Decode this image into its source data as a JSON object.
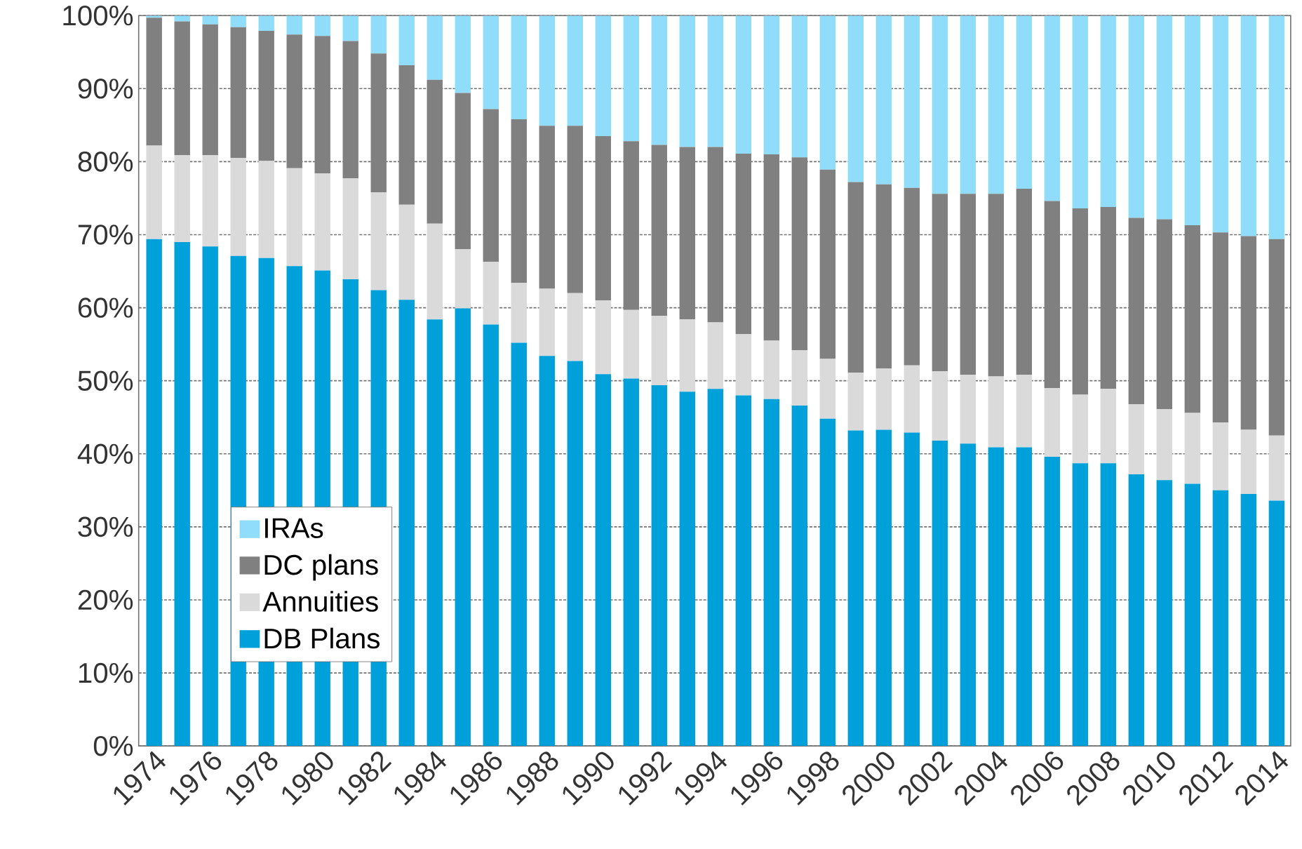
{
  "chart_data": {
    "type": "bar",
    "stacked": true,
    "categories": [
      "1974",
      null,
      "1976",
      null,
      "1978",
      null,
      "1980",
      null,
      "1982",
      null,
      "1984",
      null,
      "1986",
      null,
      "1988",
      null,
      "1990",
      null,
      "1992",
      null,
      "1994",
      null,
      "1996",
      null,
      "1998",
      null,
      "2000",
      null,
      "2002",
      null,
      "2004",
      null,
      "2006",
      null,
      "2008",
      null,
      "2010",
      null,
      "2012",
      null,
      "2014"
    ],
    "series": [
      {
        "name": "DB Plans",
        "color": "#00a0db",
        "values": [
          69.4,
          69.0,
          68.4,
          67.1,
          66.8,
          65.7,
          65.1,
          63.9,
          62.4,
          61.1,
          58.4,
          59.9,
          57.7,
          55.2,
          53.4,
          52.7,
          50.9,
          50.3,
          49.4,
          48.5,
          48.9,
          48.0,
          47.5,
          46.6,
          44.8,
          43.2,
          43.3,
          42.9,
          41.8,
          41.4,
          40.9,
          40.9,
          39.6,
          38.7,
          38.7,
          37.2,
          36.4,
          35.9,
          35.0,
          34.5,
          33.6
        ]
      },
      {
        "name": "Annuities",
        "color": "#dadada",
        "values": [
          12.8,
          11.9,
          12.5,
          13.4,
          13.3,
          13.4,
          13.3,
          13.8,
          13.4,
          13.0,
          13.1,
          8.1,
          8.6,
          8.2,
          9.2,
          9.3,
          10.1,
          9.4,
          9.5,
          9.9,
          9.1,
          8.4,
          8.0,
          7.6,
          8.2,
          7.9,
          8.4,
          9.2,
          9.5,
          9.4,
          9.7,
          9.9,
          9.4,
          9.4,
          10.2,
          9.6,
          9.7,
          9.7,
          9.3,
          8.8,
          8.9
        ]
      },
      {
        "name": "DC plans",
        "color": "#808080",
        "values": [
          17.5,
          18.3,
          17.9,
          17.9,
          17.8,
          18.3,
          18.8,
          18.8,
          19.0,
          19.1,
          19.7,
          21.4,
          20.9,
          22.4,
          22.3,
          22.9,
          22.5,
          23.1,
          23.4,
          23.6,
          24.0,
          24.7,
          25.5,
          26.4,
          25.9,
          26.1,
          25.2,
          24.3,
          24.3,
          24.8,
          25.0,
          25.5,
          25.6,
          25.5,
          24.9,
          25.5,
          26.0,
          25.7,
          26.0,
          26.5,
          26.9
        ]
      },
      {
        "name": "IRAs",
        "color": "#8fdcfb",
        "values": [
          0.3,
          0.8,
          1.2,
          1.6,
          2.1,
          2.6,
          2.8,
          3.5,
          5.2,
          6.8,
          8.8,
          10.6,
          12.8,
          14.2,
          15.1,
          15.1,
          16.5,
          17.2,
          17.7,
          18.0,
          18.0,
          18.9,
          19.0,
          19.4,
          21.1,
          22.8,
          23.1,
          23.6,
          24.4,
          24.4,
          24.4,
          23.7,
          25.4,
          26.4,
          26.2,
          27.7,
          27.9,
          28.7,
          29.7,
          30.2,
          30.6
        ]
      }
    ],
    "ylim": [
      0,
      100
    ],
    "yticks": [
      {
        "value": 0,
        "label": "0%"
      },
      {
        "value": 10,
        "label": "10%"
      },
      {
        "value": 20,
        "label": "20%"
      },
      {
        "value": 30,
        "label": "30%"
      },
      {
        "value": 40,
        "label": "40%"
      },
      {
        "value": 50,
        "label": "50%"
      },
      {
        "value": 60,
        "label": "60%"
      },
      {
        "value": 70,
        "label": "70%"
      },
      {
        "value": 80,
        "label": "80%"
      },
      {
        "value": 90,
        "label": "90%"
      },
      {
        "value": 100,
        "label": "100%"
      }
    ],
    "grid": "y",
    "legend": "bottom left"
  }
}
